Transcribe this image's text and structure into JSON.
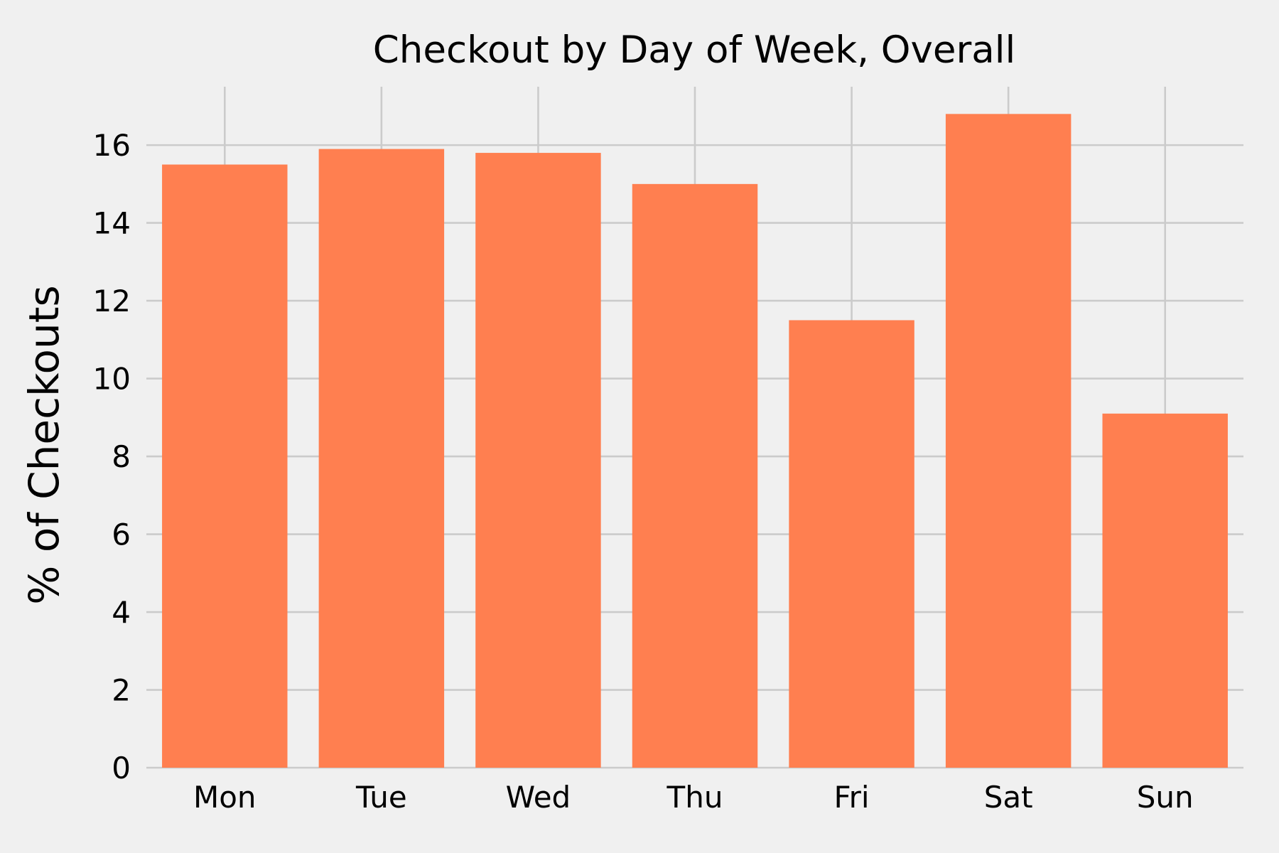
{
  "chart_data": {
    "type": "bar",
    "title": "Checkout by Day of Week, Overall",
    "xlabel": "",
    "ylabel": "% of Checkouts",
    "categories": [
      "Mon",
      "Tue",
      "Wed",
      "Thu",
      "Fri",
      "Sat",
      "Sun"
    ],
    "values": [
      15.5,
      15.9,
      15.8,
      15.0,
      11.5,
      16.8,
      9.1
    ],
    "ylim": [
      0,
      17.5
    ],
    "yticks": [
      "0",
      "2",
      "4",
      "6",
      "8",
      "10",
      "12",
      "14",
      "16"
    ],
    "grid": true,
    "legend": "none",
    "bar_color": "#ff7f50",
    "background_color": "#f0f0f0",
    "grid_color": "#cbcbcb"
  }
}
